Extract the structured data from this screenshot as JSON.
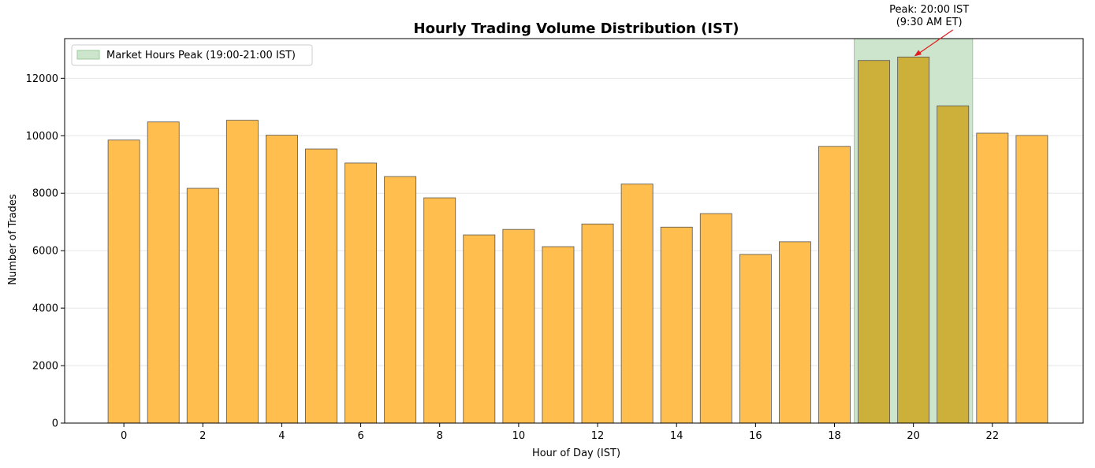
{
  "chart_data": {
    "type": "bar",
    "title": "Hourly Trading Volume Distribution (IST)",
    "xlabel": "Hour of Day (IST)",
    "ylabel": "Number of Trades",
    "x": [
      0,
      1,
      2,
      3,
      4,
      5,
      6,
      7,
      8,
      9,
      10,
      11,
      12,
      13,
      14,
      15,
      16,
      17,
      18,
      19,
      20,
      21,
      22,
      23
    ],
    "values": [
      9850,
      10480,
      8170,
      10540,
      10020,
      9540,
      9050,
      8580,
      7840,
      6550,
      6740,
      6140,
      6930,
      8320,
      6820,
      7290,
      5870,
      6310,
      9630,
      12620,
      12740,
      11040,
      10090,
      10010
    ],
    "highlight_indices": [
      19,
      20,
      21
    ],
    "xlim": [
      -1.5,
      24.3
    ],
    "ylim": [
      0,
      13380
    ],
    "x_ticks": [
      0,
      2,
      4,
      6,
      8,
      10,
      12,
      14,
      16,
      18,
      20,
      22
    ],
    "y_ticks": [
      0,
      2000,
      4000,
      6000,
      8000,
      10000,
      12000
    ],
    "grid": "horizontal",
    "shaded_region": {
      "x_start": 18.5,
      "x_end": 21.5,
      "label": "Market Hours Peak (19:00-21:00 IST)"
    },
    "legend": {
      "placement": "top-left",
      "entries": [
        "Market Hours Peak (19:00-21:00 IST)"
      ]
    },
    "annotation": {
      "lines": [
        "Peak: 20:00 IST",
        "(9:30 AM ET)"
      ],
      "x": 20,
      "y": 12740,
      "text_x": 20,
      "text_y": 13900
    },
    "colors": {
      "bar": "#FFBE4D",
      "bar_highlight": "#CDB03A",
      "bar_edge": "#555555",
      "shade": "#CDE5CD",
      "shade_edge": "#9CCB9C",
      "arrow": "#E41A1C",
      "grid": "#E6E6E6"
    }
  }
}
